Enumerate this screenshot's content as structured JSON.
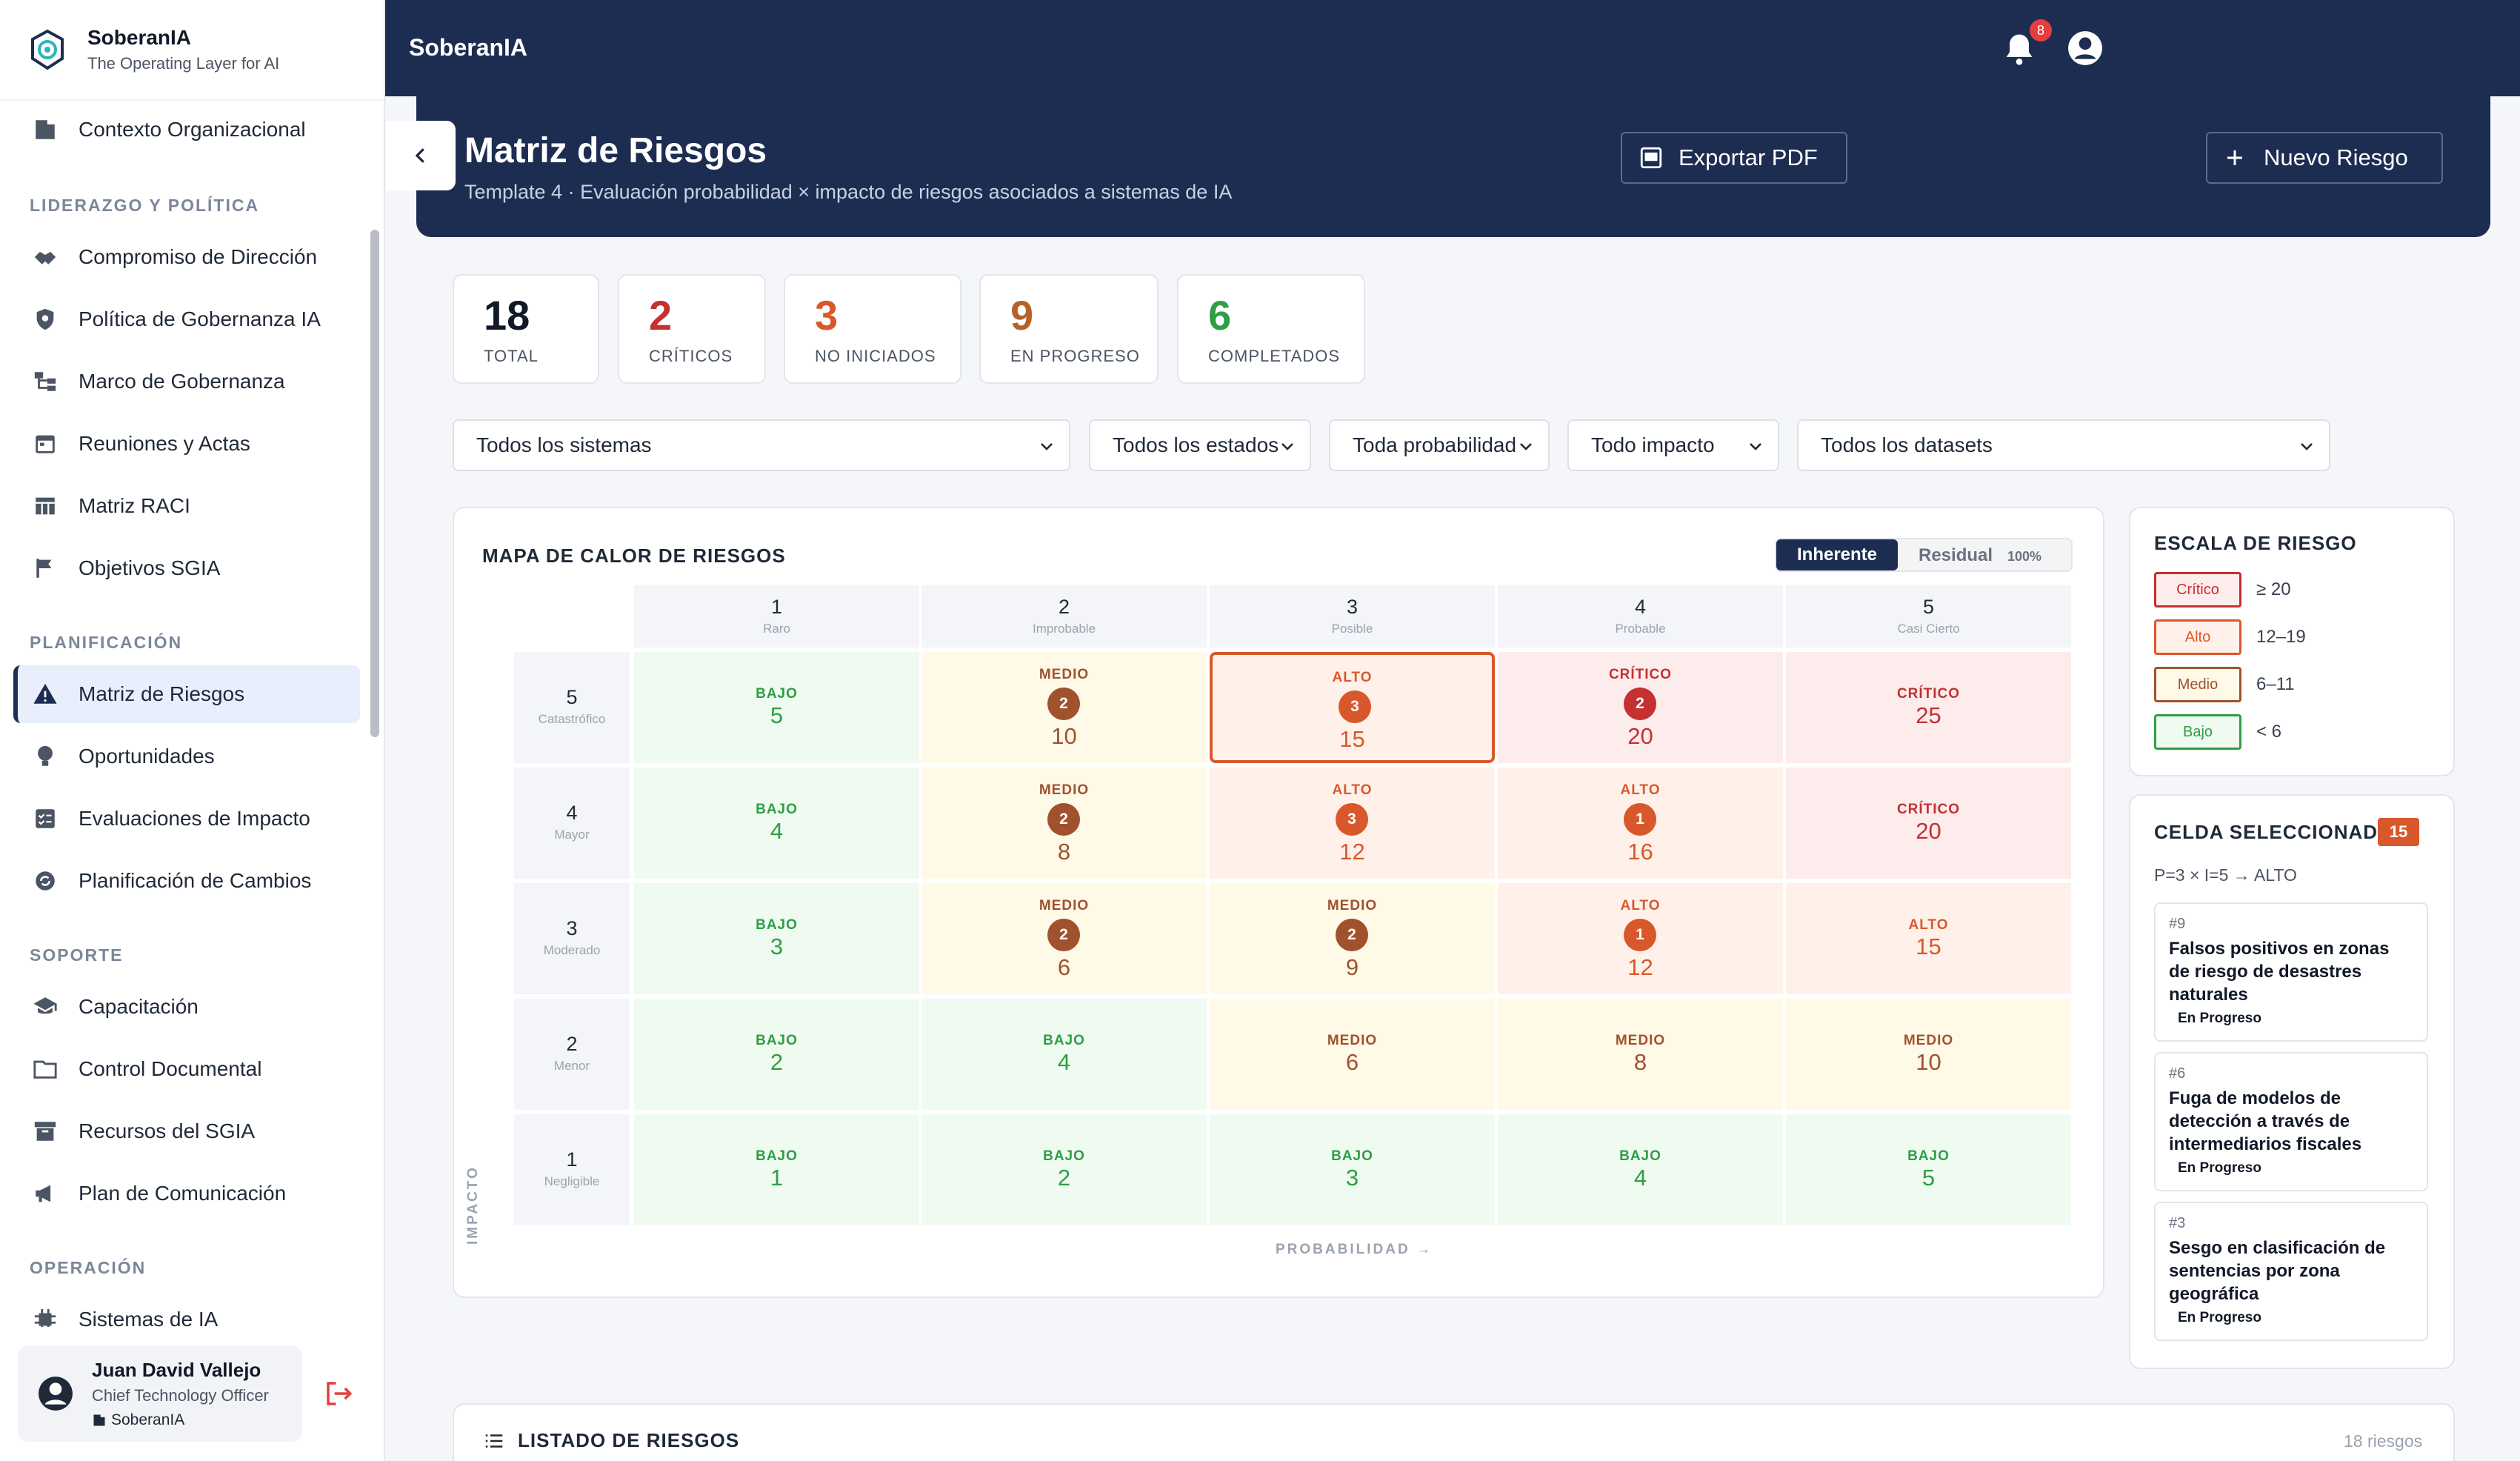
{
  "app": {
    "name": "SoberanIA",
    "tagline": "The Operating Layer for AI",
    "notifications": "8"
  },
  "sidebar": {
    "top_item": "Contexto Organizacional",
    "sections": [
      "LIDERAZGO Y POLÍTICA",
      "PLANIFICACIÓN",
      "SOPORTE",
      "OPERACIÓN"
    ],
    "items": [
      "Compromiso de Dirección",
      "Política de Gobernanza IA",
      "Marco de Gobernanza",
      "Reuniones y Actas",
      "Matriz RACI",
      "Objetivos SGIA",
      "Matriz de Riesgos",
      "Oportunidades",
      "Evaluaciones de Impacto",
      "Planificación de Cambios",
      "Capacitación",
      "Control Documental",
      "Recursos del SGIA",
      "Plan de Comunicación",
      "Sistemas de IA"
    ],
    "active": "Matriz de Riesgos"
  },
  "user": {
    "name": "Juan David Vallejo",
    "role": "Chief Technology Officer",
    "org": "SoberanIA"
  },
  "header": {
    "title": "Matriz de Riesgos",
    "subtitle": "Template 4 · Evaluación probabilidad × impacto de riesgos asociados a sistemas de IA",
    "export_label": "Exportar PDF",
    "new_label": "Nuevo Riesgo"
  },
  "stats": [
    {
      "value": "18",
      "label": "TOTAL",
      "color": "#111827"
    },
    {
      "value": "2",
      "label": "CRÍTICOS",
      "color": "#c53030"
    },
    {
      "value": "3",
      "label": "NO INICIADOS",
      "color": "#d9582b"
    },
    {
      "value": "9",
      "label": "EN PROGRESO",
      "color": "#b7612a"
    },
    {
      "value": "6",
      "label": "COMPLETADOS",
      "color": "#2f9e44"
    }
  ],
  "filters": [
    "Todos los sistemas",
    "Todos los estados",
    "Toda probabilidad",
    "Todo impacto",
    "Todos los datasets"
  ],
  "heatmap": {
    "title": "MAPA DE CALOR DE RIESGOS",
    "toggle_on": "Inherente",
    "toggle_off": "Residual",
    "toggle_pct": "100%",
    "x_axis": "PROBABILIDAD →",
    "y_axis": "IMPACTO",
    "columns": [
      {
        "num": "1",
        "label": "Raro"
      },
      {
        "num": "2",
        "label": "Improbable"
      },
      {
        "num": "3",
        "label": "Posible"
      },
      {
        "num": "4",
        "label": "Probable"
      },
      {
        "num": "5",
        "label": "Casi Cierto"
      }
    ],
    "rows": [
      {
        "num": "5",
        "label": "Catastrófico"
      },
      {
        "num": "4",
        "label": "Mayor"
      },
      {
        "num": "3",
        "label": "Moderado"
      },
      {
        "num": "2",
        "label": "Menor"
      },
      {
        "num": "1",
        "label": "Negligible"
      }
    ],
    "cells": [
      [
        {
          "level": "BAJO",
          "score": "5",
          "count": ""
        },
        {
          "level": "MEDIO",
          "score": "10",
          "count": "2"
        },
        {
          "level": "ALTO",
          "score": "15",
          "count": "3",
          "selected": true
        },
        {
          "level": "CRÍTICO",
          "score": "20",
          "count": "2"
        },
        {
          "level": "CRÍTICO",
          "score": "25",
          "count": ""
        }
      ],
      [
        {
          "level": "BAJO",
          "score": "4",
          "count": ""
        },
        {
          "level": "MEDIO",
          "score": "8",
          "count": "2"
        },
        {
          "level": "ALTO",
          "score": "12",
          "count": "3"
        },
        {
          "level": "ALTO",
          "score": "16",
          "count": "1"
        },
        {
          "level": "CRÍTICO",
          "score": "20",
          "count": ""
        }
      ],
      [
        {
          "level": "BAJO",
          "score": "3",
          "count": ""
        },
        {
          "level": "MEDIO",
          "score": "6",
          "count": "2"
        },
        {
          "level": "MEDIO",
          "score": "9",
          "count": "2"
        },
        {
          "level": "ALTO",
          "score": "12",
          "count": "1"
        },
        {
          "level": "ALTO",
          "score": "15",
          "count": ""
        }
      ],
      [
        {
          "level": "BAJO",
          "score": "2",
          "count": ""
        },
        {
          "level": "BAJO",
          "score": "4",
          "count": ""
        },
        {
          "level": "MEDIO",
          "score": "6",
          "count": ""
        },
        {
          "level": "MEDIO",
          "score": "8",
          "count": ""
        },
        {
          "level": "MEDIO",
          "score": "10",
          "count": ""
        }
      ],
      [
        {
          "level": "BAJO",
          "score": "1",
          "count": ""
        },
        {
          "level": "BAJO",
          "score": "2",
          "count": ""
        },
        {
          "level": "BAJO",
          "score": "3",
          "count": ""
        },
        {
          "level": "BAJO",
          "score": "4",
          "count": ""
        },
        {
          "level": "BAJO",
          "score": "5",
          "count": ""
        }
      ]
    ],
    "colors": {
      "BAJO": {
        "bg": "#effaf1",
        "fg": "#2f9e44"
      },
      "MEDIO": {
        "bg": "#fff9e8",
        "fg": "#a0522d",
        "badge": "#a0522d"
      },
      "ALTO": {
        "bg": "#fff1ea",
        "fg": "#d9582b",
        "badge": "#d9582b"
      },
      "CRÍTICO": {
        "bg": "#fdecec",
        "fg": "#c53030",
        "badge": "#c53030"
      }
    }
  },
  "scale": {
    "title": "ESCALA DE RIESGO",
    "items": [
      {
        "label": "Crítico",
        "range": "≥ 20",
        "color": "#c53030",
        "bg": "#fdecec"
      },
      {
        "label": "Alto",
        "range": "12–19",
        "color": "#d9582b",
        "bg": "#fff1ea"
      },
      {
        "label": "Medio",
        "range": "6–11",
        "color": "#a0522d",
        "bg": "#fff9e8"
      },
      {
        "label": "Bajo",
        "range": "< 6",
        "color": "#2f9e44",
        "bg": "#effaf1"
      }
    ]
  },
  "selected_cell": {
    "title": "CELDA SELECCIONADA",
    "badge": "15",
    "formula": "P=3 × I=5 → ALTO",
    "risks": [
      {
        "id": "#9",
        "title": "Falsos positivos en zonas de riesgo de desastres naturales",
        "status": "En Progreso"
      },
      {
        "id": "#6",
        "title": "Fuga de modelos de detección a través de intermediarios fiscales",
        "status": "En Progreso"
      },
      {
        "id": "#3",
        "title": "Sesgo en clasificación de sentencias por zona geográfica",
        "status": "En Progreso"
      }
    ]
  },
  "list": {
    "title": "LISTADO DE RIESGOS",
    "count": "18 riesgos"
  }
}
